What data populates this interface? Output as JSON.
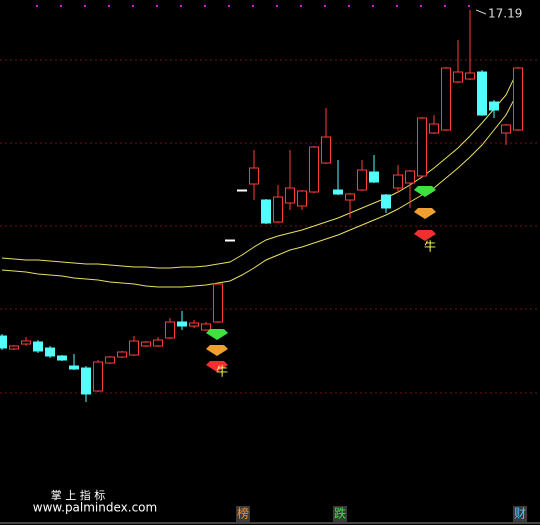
{
  "chart_data": {
    "type": "candlestick",
    "open": [
      13.93,
      13.8,
      13.85,
      13.87,
      13.81,
      13.73,
      13.63,
      13.61,
      13.38,
      13.66,
      13.72,
      13.74,
      13.83,
      13.83,
      13.91,
      14.07,
      14.03,
      13.99,
      14.07,
      14.89,
      15.39,
      15.45,
      15.29,
      15.07,
      15.26,
      15.23,
      15.37,
      15.66,
      15.39,
      15.29,
      15.39,
      15.57,
      15.34,
      15.41,
      15.46,
      15.53,
      15.96,
      15.99,
      16.47,
      16.5,
      16.57,
      16.27,
      15.96,
      15.99
    ],
    "high": [
      13.95,
      13.84,
      13.92,
      13.89,
      13.83,
      13.74,
      13.75,
      13.63,
      13.69,
      13.73,
      13.78,
      13.93,
      13.88,
      13.92,
      14.11,
      14.18,
      14.09,
      14.07,
      14.46,
      14.89,
      15.39,
      15.79,
      15.3,
      15.44,
      15.79,
      15.39,
      15.83,
      16.21,
      15.69,
      15.36,
      15.69,
      15.74,
      15.35,
      15.64,
      15.59,
      16.12,
      16.14,
      16.62,
      16.89,
      17.19,
      16.59,
      16.29,
      16.05,
      16.62
    ],
    "low": [
      13.79,
      13.79,
      13.83,
      13.76,
      13.71,
      13.68,
      13.59,
      13.27,
      13.37,
      13.65,
      13.71,
      13.73,
      13.82,
      13.82,
      13.9,
      13.99,
      14.01,
      13.98,
      14.06,
      14.89,
      15.39,
      15.29,
      15.05,
      15.06,
      15.19,
      15.19,
      15.36,
      15.65,
      15.34,
      15.11,
      15.38,
      15.46,
      15.16,
      15.36,
      15.21,
      15.52,
      15.95,
      15.98,
      16.46,
      16.49,
      16.13,
      16.11,
      15.84,
      15.98
    ],
    "close": [
      13.81,
      13.83,
      13.88,
      13.78,
      13.73,
      13.69,
      13.6,
      13.35,
      13.67,
      13.72,
      13.77,
      13.88,
      13.87,
      13.89,
      14.07,
      14.03,
      14.06,
      14.05,
      14.45,
      14.89,
      15.39,
      15.61,
      15.06,
      15.32,
      15.41,
      15.38,
      15.82,
      15.92,
      15.35,
      15.35,
      15.59,
      15.47,
      15.21,
      15.54,
      15.58,
      16.11,
      16.05,
      16.61,
      16.57,
      16.56,
      16.14,
      16.19,
      16.04,
      16.61
    ],
    "up_color": "#ff3c3c",
    "down_color": "#54fcfc",
    "series": [
      {
        "color": "#e8e060",
        "values": [
          14.71,
          14.7,
          14.69,
          14.69,
          14.68,
          14.67,
          14.66,
          14.65,
          14.65,
          14.64,
          14.63,
          14.62,
          14.62,
          14.61,
          14.61,
          14.62,
          14.62,
          14.63,
          14.65,
          14.67,
          14.74,
          14.82,
          14.89,
          14.93,
          14.96,
          14.99,
          15.03,
          15.07,
          15.11,
          15.16,
          15.21,
          15.26,
          15.31,
          15.37,
          15.44,
          15.52,
          15.61,
          15.71,
          15.81,
          15.93,
          16.06,
          16.2,
          16.34,
          16.59
        ]
      },
      {
        "color": "#e8e060",
        "values": [
          14.59,
          14.58,
          14.57,
          14.55,
          14.54,
          14.53,
          14.51,
          14.5,
          14.49,
          14.47,
          14.46,
          14.45,
          14.43,
          14.42,
          14.42,
          14.42,
          14.43,
          14.44,
          14.46,
          14.48,
          14.54,
          14.61,
          14.69,
          14.74,
          14.79,
          14.82,
          14.86,
          14.9,
          14.94,
          14.99,
          15.04,
          15.09,
          15.14,
          15.2,
          15.27,
          15.34,
          15.41,
          15.51,
          15.61,
          15.72,
          15.84,
          15.99,
          16.14,
          16.37
        ]
      }
    ],
    "ylim": [
      12.29,
      17.29
    ],
    "max_label": "17.19",
    "signals": [
      "牛",
      "牛"
    ]
  },
  "footer": {
    "title": "掌 上 指 标",
    "url": "www.palmindex.com",
    "tabs": [
      "榜",
      "跌",
      "财"
    ]
  }
}
